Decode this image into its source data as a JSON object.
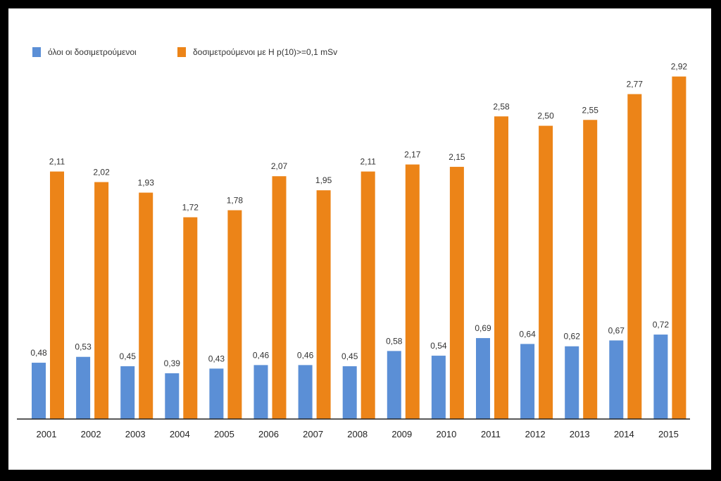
{
  "chart_data": {
    "type": "bar",
    "categories": [
      "2001",
      "2002",
      "2003",
      "2004",
      "2005",
      "2006",
      "2007",
      "2008",
      "2009",
      "2010",
      "2011",
      "2012",
      "2013",
      "2014",
      "2015"
    ],
    "series": [
      {
        "name": "όλοι οι δοσιμετρούμενοι",
        "color": "#5b8fd6",
        "values": [
          0.48,
          0.53,
          0.45,
          0.39,
          0.43,
          0.46,
          0.46,
          0.45,
          0.58,
          0.54,
          0.69,
          0.64,
          0.62,
          0.67,
          0.72
        ],
        "labels": [
          "0,48",
          "0,53",
          "0,45",
          "0,39",
          "0,43",
          "0,46",
          "0,46",
          "0,45",
          "0,58",
          "0,54",
          "0,69",
          "0,64",
          "0,62",
          "0,67",
          "0,72"
        ]
      },
      {
        "name": "δοσιμετρούμενοι με H p(10)>=0,1 mSv",
        "color": "#ec8418",
        "values": [
          2.11,
          2.02,
          1.93,
          1.72,
          1.78,
          2.07,
          1.95,
          2.11,
          2.17,
          2.15,
          2.58,
          2.5,
          2.55,
          2.77,
          2.92
        ],
        "labels": [
          "2,11",
          "2,02",
          "1,93",
          "1,72",
          "1,78",
          "2,07",
          "1,95",
          "2,11",
          "2,17",
          "2,15",
          "2,58",
          "2,50",
          "2,55",
          "2,77",
          "2,92"
        ]
      }
    ],
    "ylim": [
      0,
      3.2
    ],
    "grid": false,
    "legend_position": "top-left",
    "title": "",
    "xlabel": "",
    "ylabel": ""
  }
}
